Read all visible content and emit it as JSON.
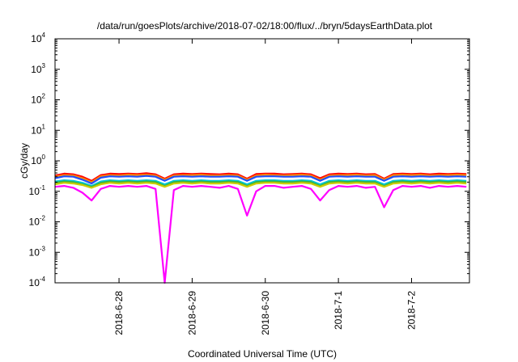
{
  "chart_data": {
    "type": "line",
    "title": "/data/run/goesPlots/archive/2018-07-02/18:00/flux/../bryn/5daysEarthData.plot",
    "xlabel": "Coordinated Universal Time (UTC)",
    "ylabel": "cGy/day",
    "yscale": "log",
    "ylim": [
      0.0001,
      10000
    ],
    "xlim": [
      "2018-06-27 03:00",
      "2018-07-02 19:00"
    ],
    "grid": false,
    "y_ticks": [
      {
        "base": "10",
        "exp": "-4",
        "value": 0.0001
      },
      {
        "base": "10",
        "exp": "-3",
        "value": 0.001
      },
      {
        "base": "10",
        "exp": "-2",
        "value": 0.01
      },
      {
        "base": "10",
        "exp": "-1",
        "value": 0.1
      },
      {
        "base": "10",
        "exp": "0",
        "value": 1
      },
      {
        "base": "10",
        "exp": "1",
        "value": 10
      },
      {
        "base": "10",
        "exp": "2",
        "value": 100
      },
      {
        "base": "10",
        "exp": "3",
        "value": 1000
      },
      {
        "base": "10",
        "exp": "4",
        "value": 10000
      }
    ],
    "x_ticks": [
      "2018-6-28",
      "2018-6-29",
      "2018-6-30",
      "2018-7-1",
      "2018-7-2"
    ],
    "x_tick_values": [
      "2018-06-28 00:00",
      "2018-06-29 00:00",
      "2018-06-30 00:00",
      "2018-07-01 00:00",
      "2018-07-02 00:00"
    ],
    "x": [
      "2018-06-27 03:00",
      "2018-06-27 06:00",
      "2018-06-27 09:00",
      "2018-06-27 12:00",
      "2018-06-27 15:00",
      "2018-06-27 18:00",
      "2018-06-27 21:00",
      "2018-06-28 00:00",
      "2018-06-28 03:00",
      "2018-06-28 06:00",
      "2018-06-28 09:00",
      "2018-06-28 12:00",
      "2018-06-28 15:00",
      "2018-06-28 18:00",
      "2018-06-28 21:00",
      "2018-06-29 00:00",
      "2018-06-29 03:00",
      "2018-06-29 06:00",
      "2018-06-29 09:00",
      "2018-06-29 12:00",
      "2018-06-29 15:00",
      "2018-06-29 18:00",
      "2018-06-29 21:00",
      "2018-06-30 00:00",
      "2018-06-30 03:00",
      "2018-06-30 06:00",
      "2018-06-30 09:00",
      "2018-06-30 12:00",
      "2018-06-30 15:00",
      "2018-06-30 18:00",
      "2018-06-30 21:00",
      "2018-07-01 00:00",
      "2018-07-01 03:00",
      "2018-07-01 06:00",
      "2018-07-01 09:00",
      "2018-07-01 12:00",
      "2018-07-01 15:00",
      "2018-07-01 18:00",
      "2018-07-01 21:00",
      "2018-07-02 00:00",
      "2018-07-02 03:00",
      "2018-07-02 06:00",
      "2018-07-02 09:00",
      "2018-07-02 12:00",
      "2018-07-02 15:00",
      "2018-07-02 18:00"
    ],
    "series": [
      {
        "color": "#ff0000",
        "values": [
          0.33,
          0.38,
          0.36,
          0.3,
          0.22,
          0.34,
          0.38,
          0.37,
          0.38,
          0.37,
          0.39,
          0.36,
          0.26,
          0.36,
          0.38,
          0.37,
          0.38,
          0.37,
          0.36,
          0.38,
          0.36,
          0.26,
          0.37,
          0.38,
          0.38,
          0.36,
          0.37,
          0.38,
          0.36,
          0.27,
          0.36,
          0.38,
          0.37,
          0.38,
          0.36,
          0.37,
          0.26,
          0.37,
          0.38,
          0.37,
          0.38,
          0.36,
          0.38,
          0.37,
          0.38,
          0.37
        ]
      },
      {
        "color": "#ff8c00",
        "values": [
          0.3,
          0.34,
          0.33,
          0.27,
          0.2,
          0.31,
          0.34,
          0.33,
          0.35,
          0.34,
          0.35,
          0.33,
          0.24,
          0.33,
          0.34,
          0.34,
          0.35,
          0.33,
          0.33,
          0.34,
          0.33,
          0.24,
          0.33,
          0.35,
          0.34,
          0.33,
          0.34,
          0.35,
          0.33,
          0.24,
          0.33,
          0.34,
          0.34,
          0.35,
          0.33,
          0.34,
          0.24,
          0.34,
          0.35,
          0.34,
          0.35,
          0.33,
          0.34,
          0.34,
          0.35,
          0.34
        ]
      },
      {
        "color": "#1f4fff",
        "values": [
          0.27,
          0.31,
          0.3,
          0.24,
          0.18,
          0.28,
          0.31,
          0.3,
          0.31,
          0.3,
          0.32,
          0.3,
          0.22,
          0.3,
          0.31,
          0.3,
          0.31,
          0.3,
          0.3,
          0.31,
          0.3,
          0.22,
          0.3,
          0.31,
          0.31,
          0.3,
          0.3,
          0.31,
          0.3,
          0.22,
          0.3,
          0.31,
          0.3,
          0.31,
          0.3,
          0.3,
          0.22,
          0.3,
          0.31,
          0.3,
          0.31,
          0.3,
          0.31,
          0.3,
          0.31,
          0.3
        ]
      },
      {
        "color": "#00c8d8",
        "values": [
          0.21,
          0.23,
          0.22,
          0.19,
          0.15,
          0.21,
          0.23,
          0.22,
          0.23,
          0.22,
          0.23,
          0.22,
          0.17,
          0.22,
          0.23,
          0.22,
          0.23,
          0.22,
          0.22,
          0.23,
          0.22,
          0.17,
          0.22,
          0.23,
          0.23,
          0.22,
          0.22,
          0.23,
          0.22,
          0.17,
          0.22,
          0.23,
          0.22,
          0.23,
          0.22,
          0.22,
          0.17,
          0.22,
          0.23,
          0.22,
          0.23,
          0.22,
          0.23,
          0.22,
          0.23,
          0.22
        ]
      },
      {
        "color": "#3cb43c",
        "values": [
          0.19,
          0.21,
          0.2,
          0.17,
          0.14,
          0.19,
          0.21,
          0.2,
          0.21,
          0.2,
          0.21,
          0.2,
          0.15,
          0.2,
          0.21,
          0.2,
          0.21,
          0.2,
          0.2,
          0.21,
          0.2,
          0.15,
          0.2,
          0.21,
          0.21,
          0.2,
          0.2,
          0.21,
          0.2,
          0.15,
          0.2,
          0.21,
          0.2,
          0.21,
          0.2,
          0.2,
          0.15,
          0.2,
          0.21,
          0.2,
          0.21,
          0.2,
          0.21,
          0.2,
          0.21,
          0.2
        ]
      },
      {
        "color": "#cccc00",
        "values": [
          0.17,
          0.19,
          0.18,
          0.16,
          0.13,
          0.17,
          0.19,
          0.18,
          0.19,
          0.18,
          0.19,
          0.18,
          0.14,
          0.18,
          0.19,
          0.18,
          0.19,
          0.18,
          0.18,
          0.19,
          0.18,
          0.14,
          0.18,
          0.19,
          0.19,
          0.18,
          0.18,
          0.19,
          0.18,
          0.14,
          0.18,
          0.19,
          0.18,
          0.19,
          0.18,
          0.18,
          0.14,
          0.18,
          0.19,
          0.18,
          0.19,
          0.18,
          0.19,
          0.18,
          0.19,
          0.18
        ]
      },
      {
        "color": "#ff00ff",
        "values": [
          0.14,
          0.15,
          0.13,
          0.09,
          0.05,
          0.12,
          0.15,
          0.14,
          0.15,
          0.14,
          0.15,
          0.12,
          0.0001,
          0.11,
          0.15,
          0.14,
          0.15,
          0.14,
          0.13,
          0.15,
          0.12,
          0.016,
          0.1,
          0.15,
          0.15,
          0.13,
          0.14,
          0.15,
          0.12,
          0.05,
          0.11,
          0.15,
          0.14,
          0.15,
          0.13,
          0.14,
          0.03,
          0.11,
          0.15,
          0.14,
          0.15,
          0.13,
          0.15,
          0.14,
          0.15,
          0.14
        ]
      }
    ]
  }
}
